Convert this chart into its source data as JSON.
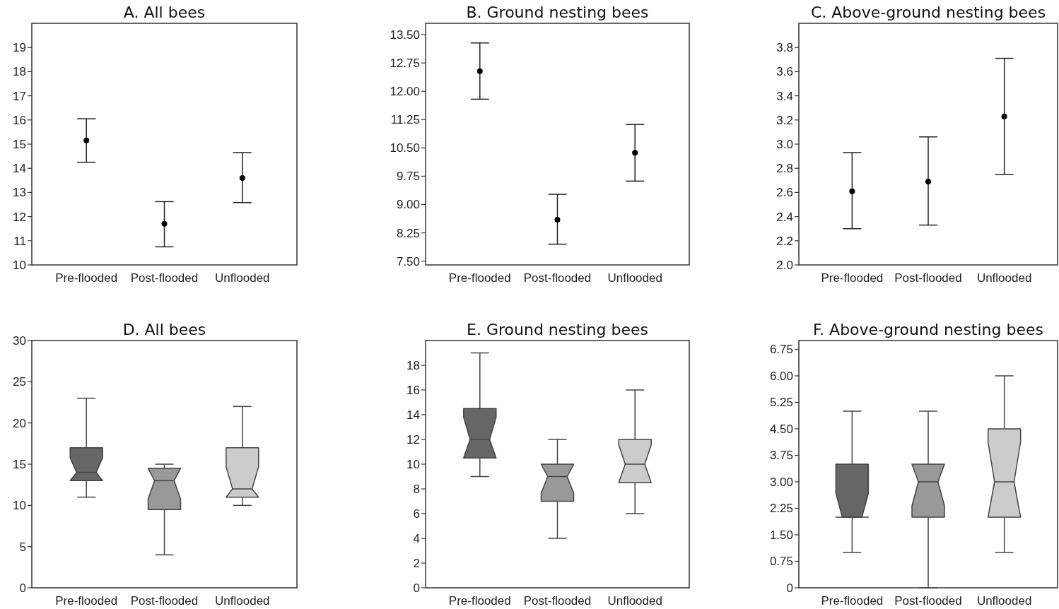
{
  "chart_data": [
    {
      "type": "scatter",
      "title": "A. All bees",
      "categories": [
        "Pre-flooded",
        "Post-flooded",
        "Unflooded"
      ],
      "values": [
        15.15,
        11.7,
        13.6
      ],
      "errors": [
        [
          14.25,
          16.05
        ],
        [
          10.75,
          12.62
        ],
        [
          12.58,
          14.65
        ]
      ],
      "marker": "circle",
      "color": "#000000",
      "ylim": [
        10,
        20
      ],
      "yticks": [
        10,
        11,
        12,
        13,
        14,
        15,
        16,
        17,
        18,
        19
      ]
    },
    {
      "type": "scatter",
      "title": "B. Ground nesting bees",
      "categories": [
        "Pre-flooded",
        "Post-flooded",
        "Unflooded"
      ],
      "values": [
        12.53,
        8.6,
        10.37
      ],
      "errors": [
        [
          11.79,
          13.28
        ],
        [
          7.95,
          9.27
        ],
        [
          9.62,
          11.12
        ]
      ],
      "marker": "circle",
      "color": "#000000",
      "ylim": [
        7.4,
        13.8
      ],
      "yticks": [
        {
          "value": 7.5,
          "label": "7.50"
        },
        {
          "value": 8.25,
          "label": "8.25"
        },
        {
          "value": 9,
          "label": "9.00"
        },
        {
          "value": 9.75,
          "label": "9.75"
        },
        {
          "value": 10.5,
          "label": "10.50"
        },
        {
          "value": 11.25,
          "label": "11.25"
        },
        {
          "value": 12,
          "label": "12.00"
        },
        {
          "value": 12.75,
          "label": "12.75"
        },
        {
          "value": 13.5,
          "label": "13.50"
        }
      ]
    },
    {
      "type": "scatter",
      "title": "C. Above-ground nesting bees",
      "categories": [
        "Pre-flooded",
        "Post-flooded",
        "Unflooded"
      ],
      "values": [
        2.61,
        2.69,
        3.23
      ],
      "errors": [
        [
          2.3,
          2.93
        ],
        [
          2.33,
          3.06
        ],
        [
          2.75,
          3.71
        ]
      ],
      "marker": "circle",
      "color": "#000000",
      "ylim": [
        2,
        4
      ],
      "yticks": [
        {
          "value": 2,
          "label": "2.0"
        },
        2.2,
        2.4,
        2.6,
        2.8,
        {
          "value": 3,
          "label": "3.0"
        },
        3.2,
        3.4,
        3.6,
        3.8
      ]
    },
    {
      "type": "box",
      "title": "D. All bees",
      "categories": [
        "Pre-flooded",
        "Post-flooded",
        "Unflooded"
      ],
      "colors": [
        "#666666",
        "#999999",
        "#cccccc"
      ],
      "boxes": [
        {
          "low": 11,
          "q1": 13,
          "median": 14,
          "q3": 17,
          "high": 23
        },
        {
          "low": 4,
          "q1": 9.5,
          "median": 13,
          "q3": 14.5,
          "high": 15
        },
        {
          "low": 10,
          "q1": 11,
          "median": 12,
          "q3": 17,
          "high": 22
        }
      ],
      "ylim": [
        0,
        30
      ],
      "yticks": [
        0,
        5,
        10,
        15,
        20,
        25,
        30
      ]
    },
    {
      "type": "box",
      "title": "E. Ground nesting bees",
      "categories": [
        "Pre-flooded",
        "Post-flooded",
        "Unflooded"
      ],
      "colors": [
        "#666666",
        "#999999",
        "#cccccc"
      ],
      "boxes": [
        {
          "low": 9,
          "q1": 10.5,
          "median": 12,
          "q3": 14.5,
          "high": 19
        },
        {
          "low": 4,
          "q1": 7,
          "median": 9,
          "q3": 10,
          "high": 12
        },
        {
          "low": 6,
          "q1": 8.5,
          "median": 10,
          "q3": 12,
          "high": 16
        }
      ],
      "ylim": [
        0,
        20
      ],
      "yticks": [
        0,
        2,
        4,
        6,
        8,
        10,
        12,
        14,
        16,
        18
      ]
    },
    {
      "type": "box",
      "title": "F. Above-ground nesting bees",
      "categories": [
        "Pre-flooded",
        "Post-flooded",
        "Unflooded"
      ],
      "colors": [
        "#666666",
        "#999999",
        "#cccccc"
      ],
      "boxes": [
        {
          "low": 1,
          "q1": 2,
          "median": 2,
          "q3": 3.5,
          "high": 5
        },
        {
          "low": 0,
          "q1": 2,
          "median": 3,
          "q3": 3.5,
          "high": 5
        },
        {
          "low": 1,
          "q1": 2,
          "median": 3,
          "q3": 4.5,
          "high": 6
        }
      ],
      "ylim": [
        0,
        7
      ],
      "yticks": [
        0,
        {
          "value": 0.75,
          "label": "0.75"
        },
        {
          "value": 1.5,
          "label": "1.50"
        },
        {
          "value": 2.25,
          "label": "2.25"
        },
        {
          "value": 3,
          "label": "3.00"
        },
        {
          "value": 3.75,
          "label": "3.75"
        },
        {
          "value": 4.5,
          "label": "4.50"
        },
        {
          "value": 5.25,
          "label": "5.25"
        },
        {
          "value": 6,
          "label": "6.00"
        },
        {
          "value": 6.75,
          "label": "6.75"
        }
      ]
    }
  ]
}
